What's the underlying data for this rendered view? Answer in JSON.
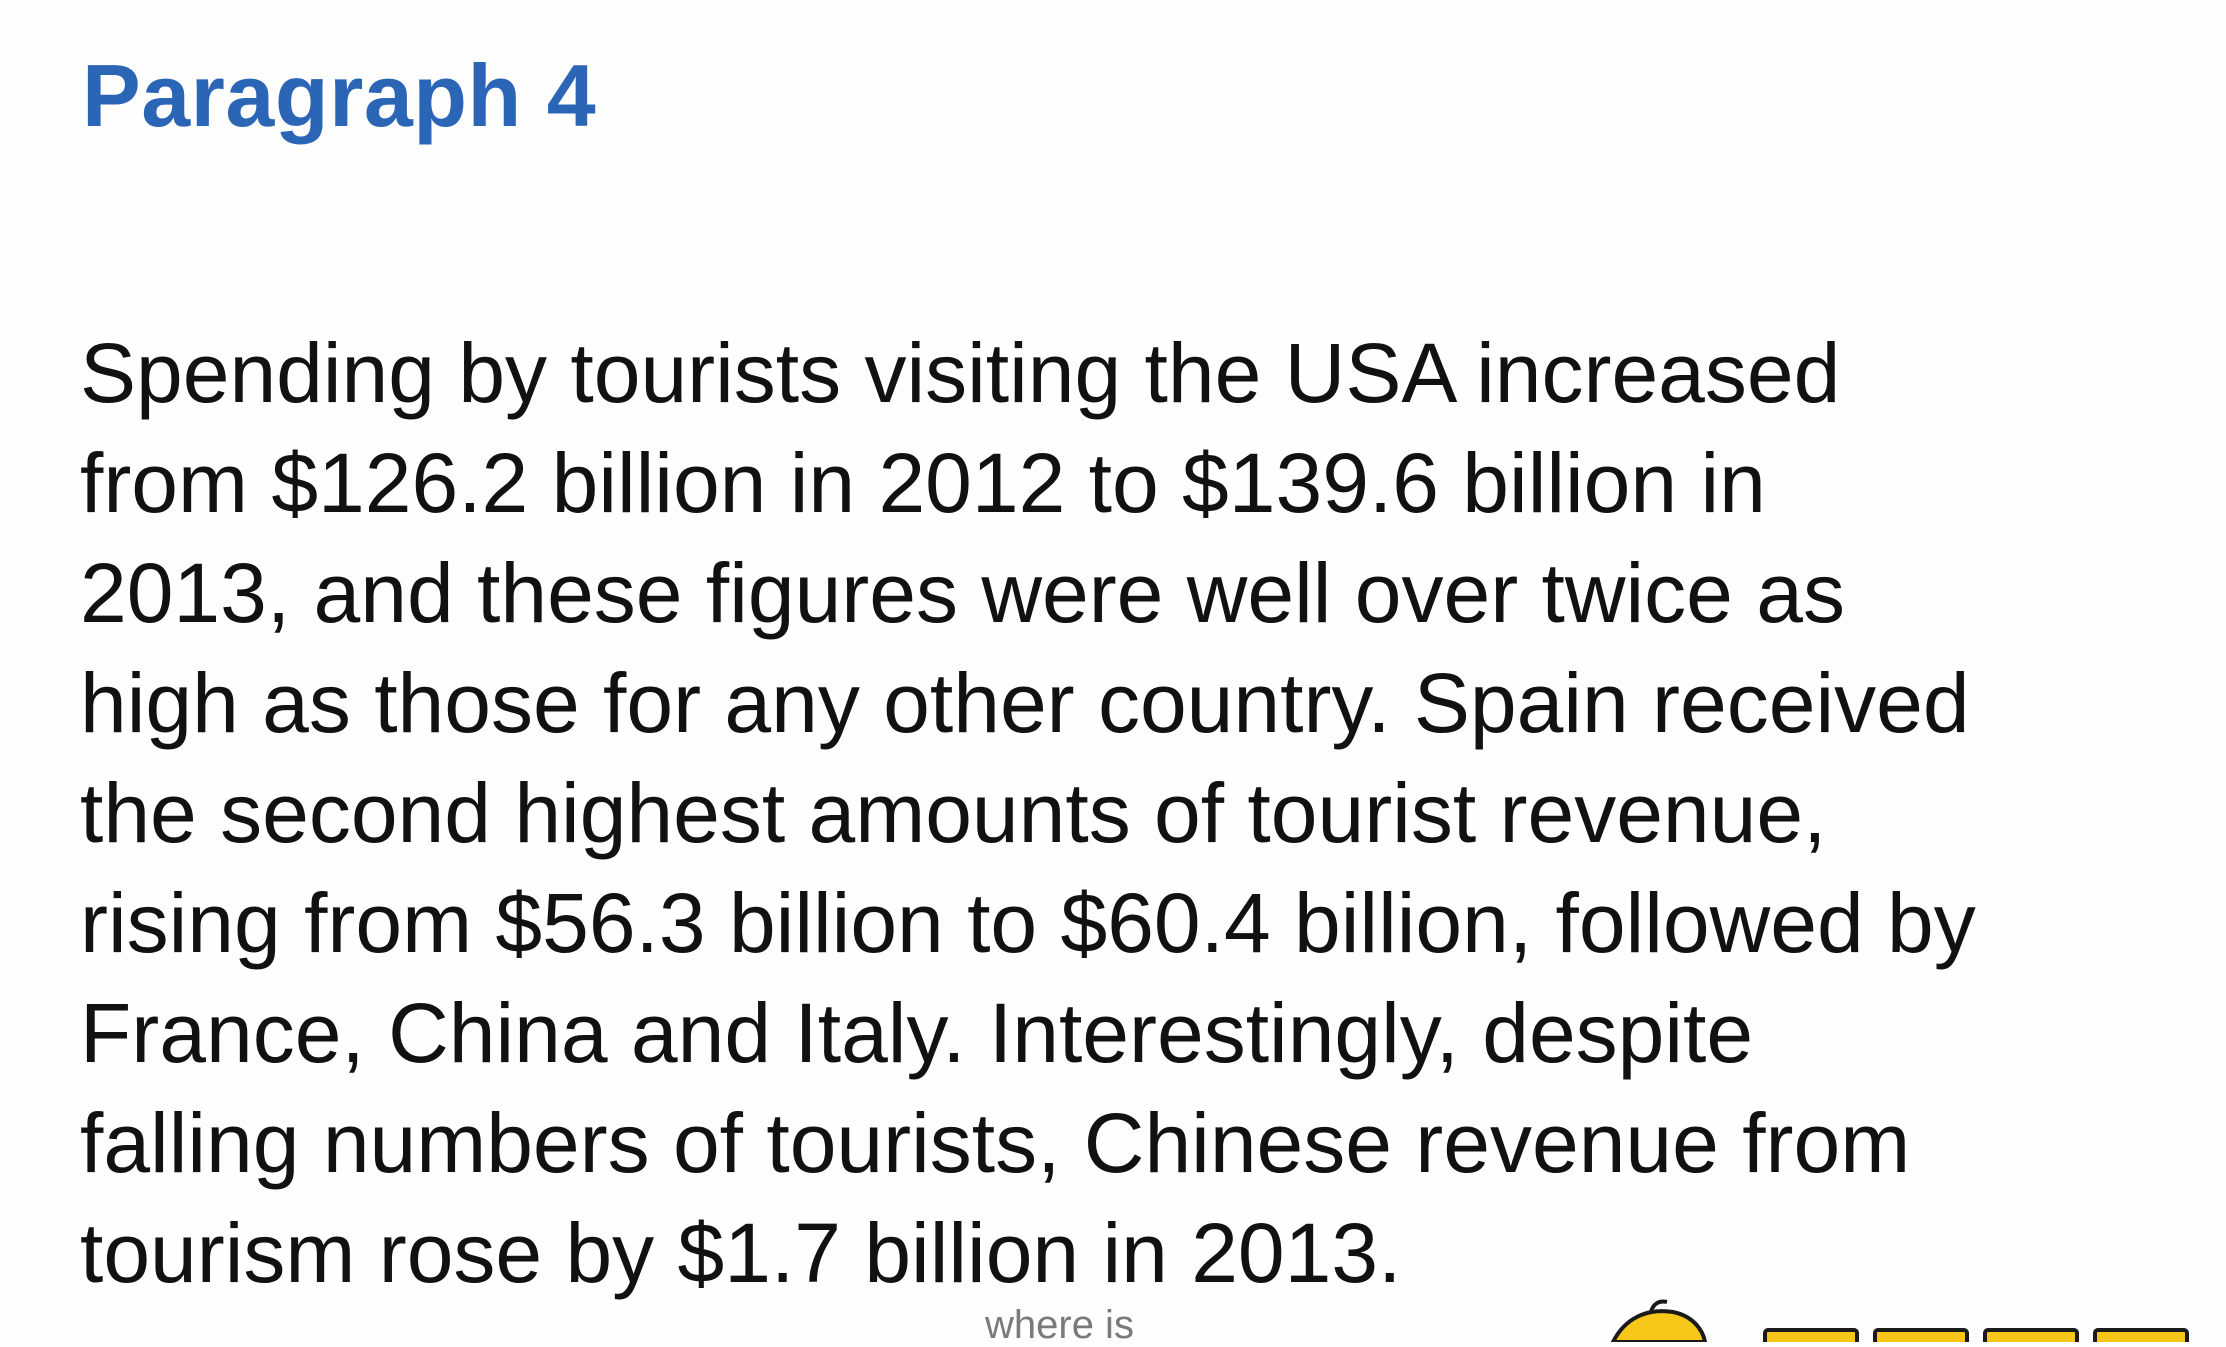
{
  "heading": "Paragraph 4",
  "paragraph_lines": [
    "Spending by tourists visiting the USA increased",
    "from $126.2 billion in 2012 to $139.6 billion in",
    "2013, and these figures were well over twice as",
    "high as those for any other country. Spain received",
    "the second highest amounts of tourist revenue,",
    "rising from $56.3 billion to $60.4 billion, followed by",
    "France, China and Italy. Interestingly, despite",
    "falling numbers of tourists, Chinese revenue from",
    "tourism rose by $1.7 billion in 2013."
  ],
  "caption_fragment": "where is",
  "colors": {
    "heading": "#2b65b6",
    "text": "#111111",
    "background": "#fefefe",
    "logo_yellow": "#f6c619"
  }
}
